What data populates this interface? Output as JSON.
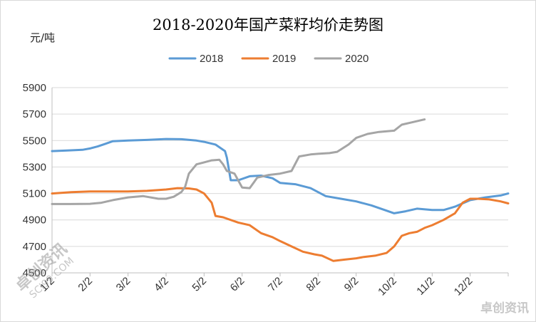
{
  "chart_data": {
    "type": "line",
    "title": "2018-2020年国产菜籽均价走势图",
    "ylabel": "元/吨",
    "ylim": [
      4500,
      5900
    ],
    "yticks": [
      4500,
      4700,
      4900,
      5100,
      5300,
      5500,
      5700,
      5900
    ],
    "x_tick_labels": [
      "1/2",
      "2/2",
      "3/2",
      "4/2",
      "5/2",
      "6/2",
      "7/2",
      "8/2",
      "9/2",
      "10/2",
      "11/2",
      "12/2"
    ],
    "legend_position": "top-center",
    "grid": "horizontal",
    "series": [
      {
        "name": "2018",
        "color": "#5b9bd5",
        "x": [
          0,
          0.4,
          0.8,
          1.0,
          1.2,
          1.4,
          1.6,
          2.0,
          2.5,
          3.0,
          3.4,
          3.8,
          4.0,
          4.3,
          4.55,
          4.6,
          4.7,
          4.9,
          5.2,
          5.5,
          5.8,
          6.0,
          6.4,
          6.8,
          7.2,
          7.6,
          8.0,
          8.4,
          8.8,
          9.0,
          9.3,
          9.6,
          10.0,
          10.3,
          10.6,
          11.0,
          11.4,
          11.8,
          12.0
        ],
        "values": [
          5420,
          5425,
          5430,
          5440,
          5455,
          5475,
          5495,
          5500,
          5505,
          5512,
          5510,
          5500,
          5490,
          5470,
          5420,
          5370,
          5200,
          5200,
          5230,
          5235,
          5215,
          5180,
          5170,
          5140,
          5080,
          5060,
          5040,
          5010,
          4970,
          4950,
          4965,
          4985,
          4975,
          4975,
          5000,
          5050,
          5070,
          5085,
          5100
        ]
      },
      {
        "name": "2019",
        "color": "#ed7d31",
        "x": [
          0,
          0.5,
          1.0,
          1.5,
          2.0,
          2.5,
          3.0,
          3.3,
          3.6,
          3.8,
          4.0,
          4.2,
          4.3,
          4.5,
          4.6,
          4.9,
          5.2,
          5.5,
          5.8,
          6.0,
          6.3,
          6.6,
          6.9,
          7.1,
          7.4,
          7.7,
          8.0,
          8.2,
          8.5,
          8.8,
          9.0,
          9.2,
          9.4,
          9.6,
          9.8,
          10.0,
          10.3,
          10.6,
          10.8,
          11.0,
          11.2,
          11.5,
          11.8,
          12.0
        ],
        "values": [
          5100,
          5110,
          5115,
          5115,
          5115,
          5120,
          5130,
          5140,
          5138,
          5130,
          5100,
          5030,
          4930,
          4920,
          4910,
          4880,
          4860,
          4800,
          4770,
          4740,
          4700,
          4660,
          4640,
          4630,
          4590,
          4600,
          4610,
          4620,
          4630,
          4650,
          4700,
          4780,
          4800,
          4810,
          4840,
          4860,
          4900,
          4950,
          5030,
          5060,
          5060,
          5055,
          5040,
          5025
        ]
      },
      {
        "name": "2020",
        "color": "#a5a5a5",
        "x": [
          0,
          0.5,
          1.0,
          1.3,
          1.6,
          2.0,
          2.4,
          2.8,
          3.0,
          3.2,
          3.4,
          3.5,
          3.6,
          3.8,
          4.0,
          4.2,
          4.4,
          4.5,
          4.6,
          4.8,
          5.0,
          5.2,
          5.4,
          5.7,
          6.0,
          6.3,
          6.5,
          6.8,
          7.0,
          7.3,
          7.5,
          7.8,
          8.0,
          8.3,
          8.6,
          9.0,
          9.2,
          9.5,
          9.8
        ],
        "values": [
          5020,
          5020,
          5022,
          5030,
          5050,
          5070,
          5080,
          5060,
          5060,
          5075,
          5110,
          5150,
          5250,
          5320,
          5335,
          5350,
          5355,
          5320,
          5270,
          5250,
          5145,
          5140,
          5220,
          5240,
          5250,
          5270,
          5380,
          5395,
          5400,
          5405,
          5415,
          5470,
          5520,
          5550,
          5565,
          5575,
          5620,
          5640,
          5660
        ]
      }
    ]
  },
  "watermark": {
    "left_name": "卓创资讯",
    "left_url": "SCI99.COM",
    "right_name": "卓创资讯"
  }
}
